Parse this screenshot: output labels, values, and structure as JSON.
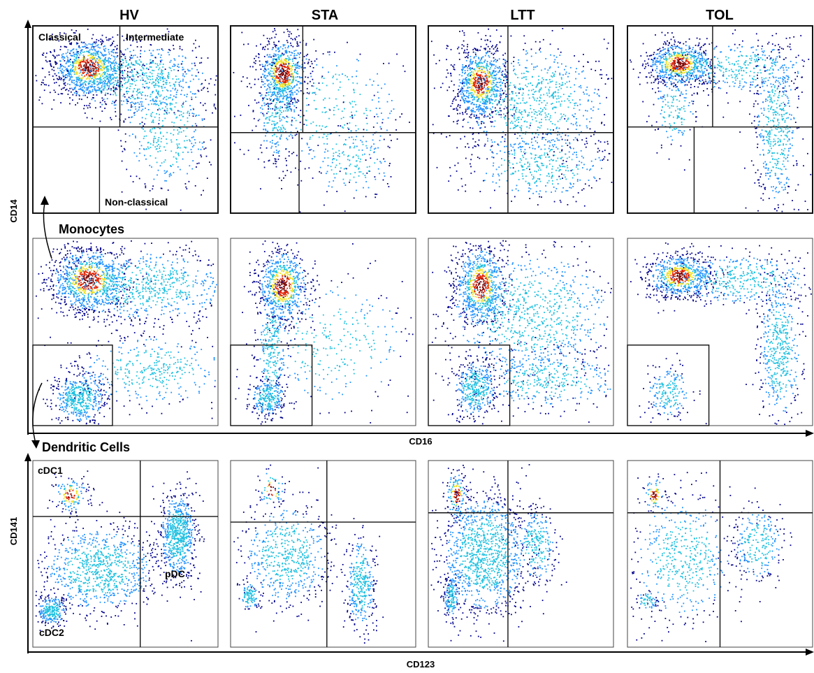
{
  "columns": [
    "HV",
    "STA",
    "LTT",
    "TOL"
  ],
  "axes": {
    "top_y": "CD14",
    "top_x": "CD16",
    "bottom_y": "CD141",
    "bottom_x": "CD123"
  },
  "rows": {
    "monocytes": "Monocytes",
    "dendritic": "Dendritic Cells"
  },
  "gate_labels": {
    "classical": "Classical",
    "intermediate": "Intermediate",
    "nonclassical": "Non-classical",
    "cdc1": "cDC1",
    "cdc2": "cDC2",
    "pdc": "pDC"
  },
  "colors": {
    "density_low": "#00008b",
    "density_mid": "#1e90ff",
    "density_cyan": "#20c0e0",
    "density_yellow": "#f0e020",
    "density_high": "#e02000",
    "density_peak": "#7a0000"
  }
}
